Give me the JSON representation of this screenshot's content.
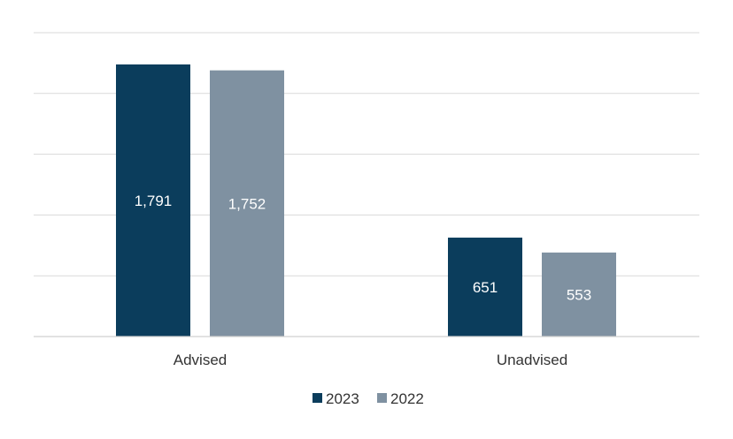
{
  "chart_data": {
    "type": "bar",
    "categories": [
      "Advised",
      "Unadvised"
    ],
    "series": [
      {
        "name": "2023",
        "values": [
          1791,
          651
        ],
        "labels": [
          "1,791",
          "651"
        ],
        "color": "#0b3d5c"
      },
      {
        "name": "2022",
        "values": [
          1752,
          553
        ],
        "labels": [
          "1,752",
          "553"
        ],
        "color": "#7f91a1"
      }
    ],
    "ylim": [
      0,
      2000
    ],
    "grid": true,
    "legend_position": "bottom-center",
    "title": "",
    "xlabel": "",
    "ylabel": ""
  }
}
